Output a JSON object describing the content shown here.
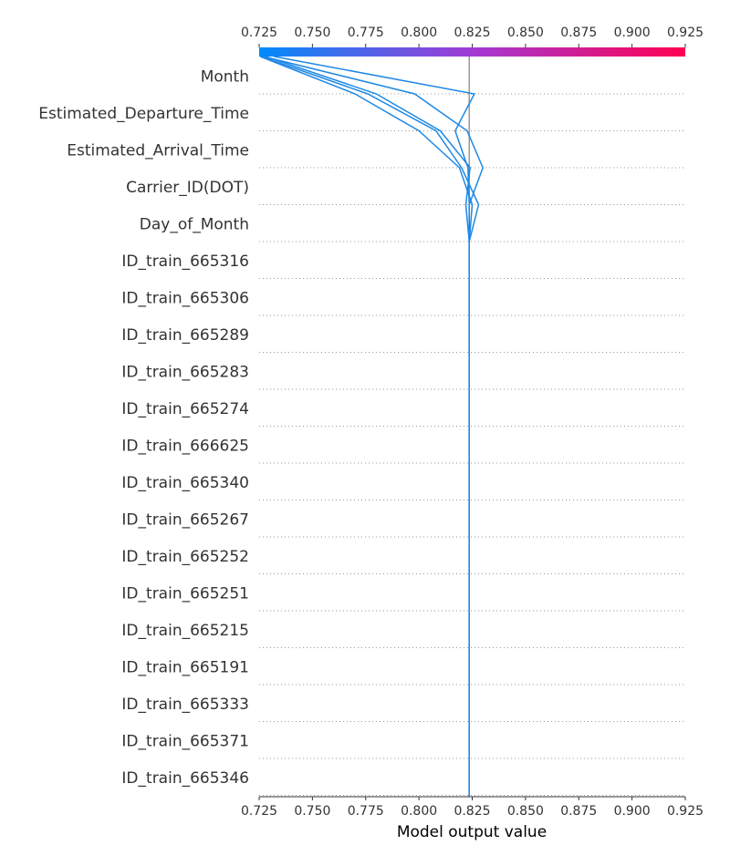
{
  "chart_data": {
    "type": "line",
    "subtype": "shap-decision-plot",
    "xlabel": "Model output value",
    "xlim": [
      0.725,
      0.925
    ],
    "xticks": [
      0.725,
      0.75,
      0.775,
      0.8,
      0.825,
      0.85,
      0.875,
      0.9,
      0.925
    ],
    "xtick_labels": [
      "0.725",
      "0.750",
      "0.775",
      "0.800",
      "0.825",
      "0.850",
      "0.875",
      "0.900",
      "0.925"
    ],
    "base_value": 0.8236,
    "colorbar": {
      "low_color": "#008bfb",
      "high_color": "#ff0051",
      "position": "top"
    },
    "line_color": "#1e88e5",
    "base_line_color": "#999999",
    "grid": "dotted horizontal",
    "features_top_to_bottom": [
      "Month",
      "Estimated_Departure_Time",
      "Estimated_Arrival_Time",
      "Carrier_ID(DOT)",
      "Day_of_Month",
      "ID_train_665316",
      "ID_train_665306",
      "ID_train_665289",
      "ID_train_665283",
      "ID_train_665274",
      "ID_train_666625",
      "ID_train_665340",
      "ID_train_665267",
      "ID_train_665252",
      "ID_train_665251",
      "ID_train_665215",
      "ID_train_665191",
      "ID_train_665333",
      "ID_train_665371",
      "ID_train_665346"
    ],
    "series_note": "Cumulative model output after each feature, listed from the bottom feature upward; last value is the final prediction at the top.",
    "series": [
      {
        "values": [
          0.8236,
          0.8236,
          0.8236,
          0.8236,
          0.8236,
          0.8236,
          0.8236,
          0.8236,
          0.8236,
          0.8236,
          0.8236,
          0.8236,
          0.8236,
          0.8236,
          0.8236,
          0.8236,
          0.8236,
          0.83,
          0.8226,
          0.798,
          0.727
        ]
      },
      {
        "values": [
          0.8236,
          0.8236,
          0.8236,
          0.8236,
          0.8236,
          0.8236,
          0.8236,
          0.8236,
          0.8236,
          0.8236,
          0.8236,
          0.8236,
          0.8236,
          0.8236,
          0.8236,
          0.8236,
          0.8236,
          0.823,
          0.817,
          0.826,
          0.732
        ]
      },
      {
        "values": [
          0.8236,
          0.8236,
          0.8236,
          0.8236,
          0.8236,
          0.8236,
          0.8236,
          0.8236,
          0.8236,
          0.8236,
          0.8236,
          0.8236,
          0.8236,
          0.8236,
          0.8236,
          0.8236,
          0.828,
          0.82,
          0.808,
          0.776,
          0.726
        ]
      },
      {
        "values": [
          0.8236,
          0.8236,
          0.8236,
          0.8236,
          0.8236,
          0.8236,
          0.8236,
          0.8236,
          0.8236,
          0.8236,
          0.8236,
          0.8236,
          0.8236,
          0.8236,
          0.8236,
          0.8236,
          0.825,
          0.819,
          0.8,
          0.77,
          0.7255
        ]
      },
      {
        "values": [
          0.8236,
          0.8236,
          0.8236,
          0.8236,
          0.8236,
          0.8236,
          0.8236,
          0.8236,
          0.8236,
          0.8236,
          0.8236,
          0.8236,
          0.8236,
          0.8236,
          0.8236,
          0.8236,
          0.822,
          0.824,
          0.81,
          0.78,
          0.728
        ]
      }
    ]
  }
}
